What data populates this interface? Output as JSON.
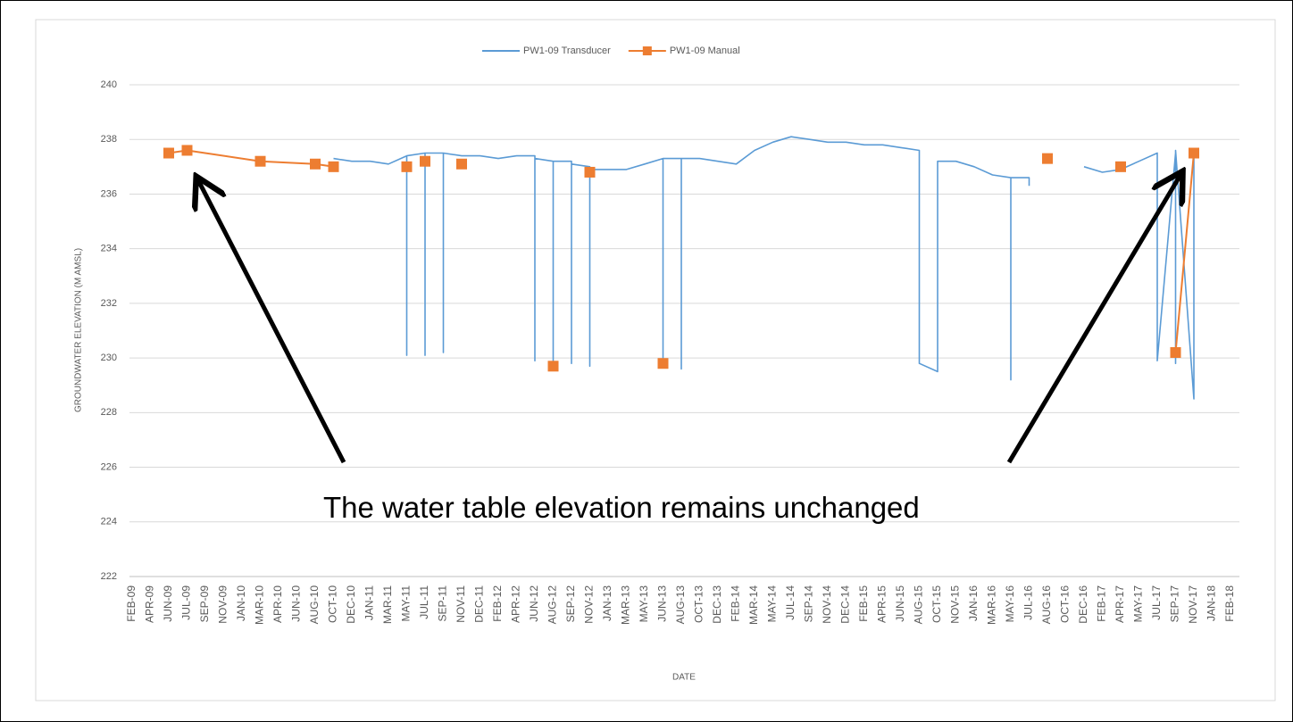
{
  "chart_data": {
    "type": "line",
    "x_label": "DATE",
    "y_label": "GROUNDWATER ELEVATION (M AMSL)",
    "annotation": "The water table elevation remains unchanged",
    "categories": [
      "FEB-09",
      "APR-09",
      "JUN-09",
      "JUL-09",
      "SEP-09",
      "NOV-09",
      "JAN-10",
      "MAR-10",
      "APR-10",
      "JUN-10",
      "AUG-10",
      "OCT-10",
      "DEC-10",
      "JAN-11",
      "MAR-11",
      "MAY-11",
      "JUL-11",
      "SEP-11",
      "NOV-11",
      "DEC-11",
      "FEB-12",
      "APR-12",
      "JUN-12",
      "AUG-12",
      "SEP-12",
      "NOV-12",
      "JAN-13",
      "MAR-13",
      "MAY-13",
      "JUN-13",
      "AUG-13",
      "OCT-13",
      "DEC-13",
      "FEB-14",
      "MAR-14",
      "MAY-14",
      "JUL-14",
      "SEP-14",
      "NOV-14",
      "DEC-14",
      "FEB-15",
      "APR-15",
      "JUN-15",
      "AUG-15",
      "OCT-15",
      "NOV-15",
      "JAN-16",
      "MAR-16",
      "MAY-16",
      "JUL-16",
      "AUG-16",
      "OCT-16",
      "DEC-16",
      "FEB-17",
      "APR-17",
      "MAY-17",
      "JUL-17",
      "SEP-17",
      "NOV-17",
      "JAN-18",
      "FEB-18"
    ],
    "ylim": [
      222,
      240
    ],
    "yticks": [
      222,
      224,
      226,
      228,
      230,
      232,
      234,
      236,
      238,
      240
    ],
    "grid": true,
    "legend": "top",
    "series": [
      {
        "name": "PW1-09 Transducer",
        "color": "#5b9bd5",
        "marker": "none",
        "x": [
          "OCT-10",
          "DEC-10",
          "JAN-11",
          "MAR-11",
          "MAY-11",
          "MAY-11",
          "MAY-11",
          "JUL-11",
          "JUL-11",
          "JUL-11",
          "JUL-11",
          "JUL-11",
          "SEP-11",
          "SEP-11",
          "SEP-11",
          "NOV-11",
          "DEC-11",
          "FEB-12",
          "APR-12",
          "JUN-12",
          "JUN-12",
          "JUN-12",
          "AUG-12",
          "AUG-12",
          "AUG-12",
          "SEP-12",
          "SEP-12",
          "SEP-12",
          "NOV-12",
          "NOV-12",
          "NOV-12",
          "JAN-13",
          "MAR-13",
          "MAY-13",
          "JUN-13",
          "JUN-13",
          "JUN-13",
          "AUG-13",
          "AUG-13",
          "AUG-13",
          "OCT-13",
          "DEC-13",
          "FEB-14",
          "MAR-14",
          "MAY-14",
          "JUL-14",
          "SEP-14",
          "NOV-14",
          "DEC-14",
          "FEB-15",
          "APR-15",
          "JUN-15",
          "AUG-15",
          "AUG-15",
          "OCT-15",
          "OCT-15",
          "NOV-15",
          "JAN-16",
          "MAR-16",
          "MAY-16",
          "MAY-16",
          "MAY-16",
          "JUL-16",
          "JUL-16",
          "AUG-16",
          "DEC-16",
          "FEB-17",
          "APR-17",
          "MAY-17",
          "JUL-17",
          "JUL-17",
          "SEP-17",
          "SEP-17",
          "SEP-17",
          "NOV-17",
          "NOV-17"
        ],
        "values": [
          237.3,
          237.2,
          237.2,
          237.1,
          237.4,
          230.1,
          237.4,
          237.5,
          230.2,
          237.4,
          230.1,
          237.5,
          237.5,
          230.2,
          237.5,
          237.4,
          237.4,
          237.3,
          237.4,
          237.4,
          229.9,
          237.3,
          237.2,
          229.8,
          237.2,
          237.2,
          229.8,
          237.1,
          237.0,
          229.7,
          236.9,
          236.9,
          236.9,
          237.1,
          237.3,
          229.9,
          237.3,
          237.3,
          229.6,
          237.3,
          237.3,
          237.2,
          237.1,
          237.6,
          237.9,
          238.1,
          238.0,
          237.9,
          237.9,
          237.8,
          237.8,
          237.7,
          237.6,
          229.8,
          229.5,
          237.2,
          237.2,
          237.0,
          236.7,
          236.6,
          229.2,
          236.6,
          236.6,
          236.3,
          null,
          237.0,
          236.8,
          236.9,
          237.2,
          237.5,
          229.9,
          237.5,
          229.8,
          237.6,
          228.5,
          237.4
        ]
      },
      {
        "name": "PW1-09 Manual",
        "color": "#ed7d31",
        "marker": "square",
        "x": [
          "JUN-09",
          "JUL-09",
          "MAR-10",
          "AUG-10",
          "OCT-10",
          "MAY-11",
          "MAY-11",
          "JUL-11",
          "JUL-11",
          "NOV-11",
          "NOV-11",
          "AUG-12",
          "AUG-12",
          "NOV-12",
          "NOV-12",
          "JUN-13",
          "JUN-13",
          "AUG-16",
          "AUG-16",
          "APR-17",
          "APR-17",
          "SEP-17",
          "SEP-17",
          "NOV-17"
        ],
        "values": [
          237.5,
          237.6,
          237.2,
          237.1,
          237.0,
          null,
          237.0,
          null,
          237.2,
          null,
          237.1,
          null,
          229.7,
          null,
          236.8,
          null,
          229.8,
          null,
          237.3,
          null,
          237.0,
          null,
          230.2,
          237.5
        ]
      }
    ]
  }
}
